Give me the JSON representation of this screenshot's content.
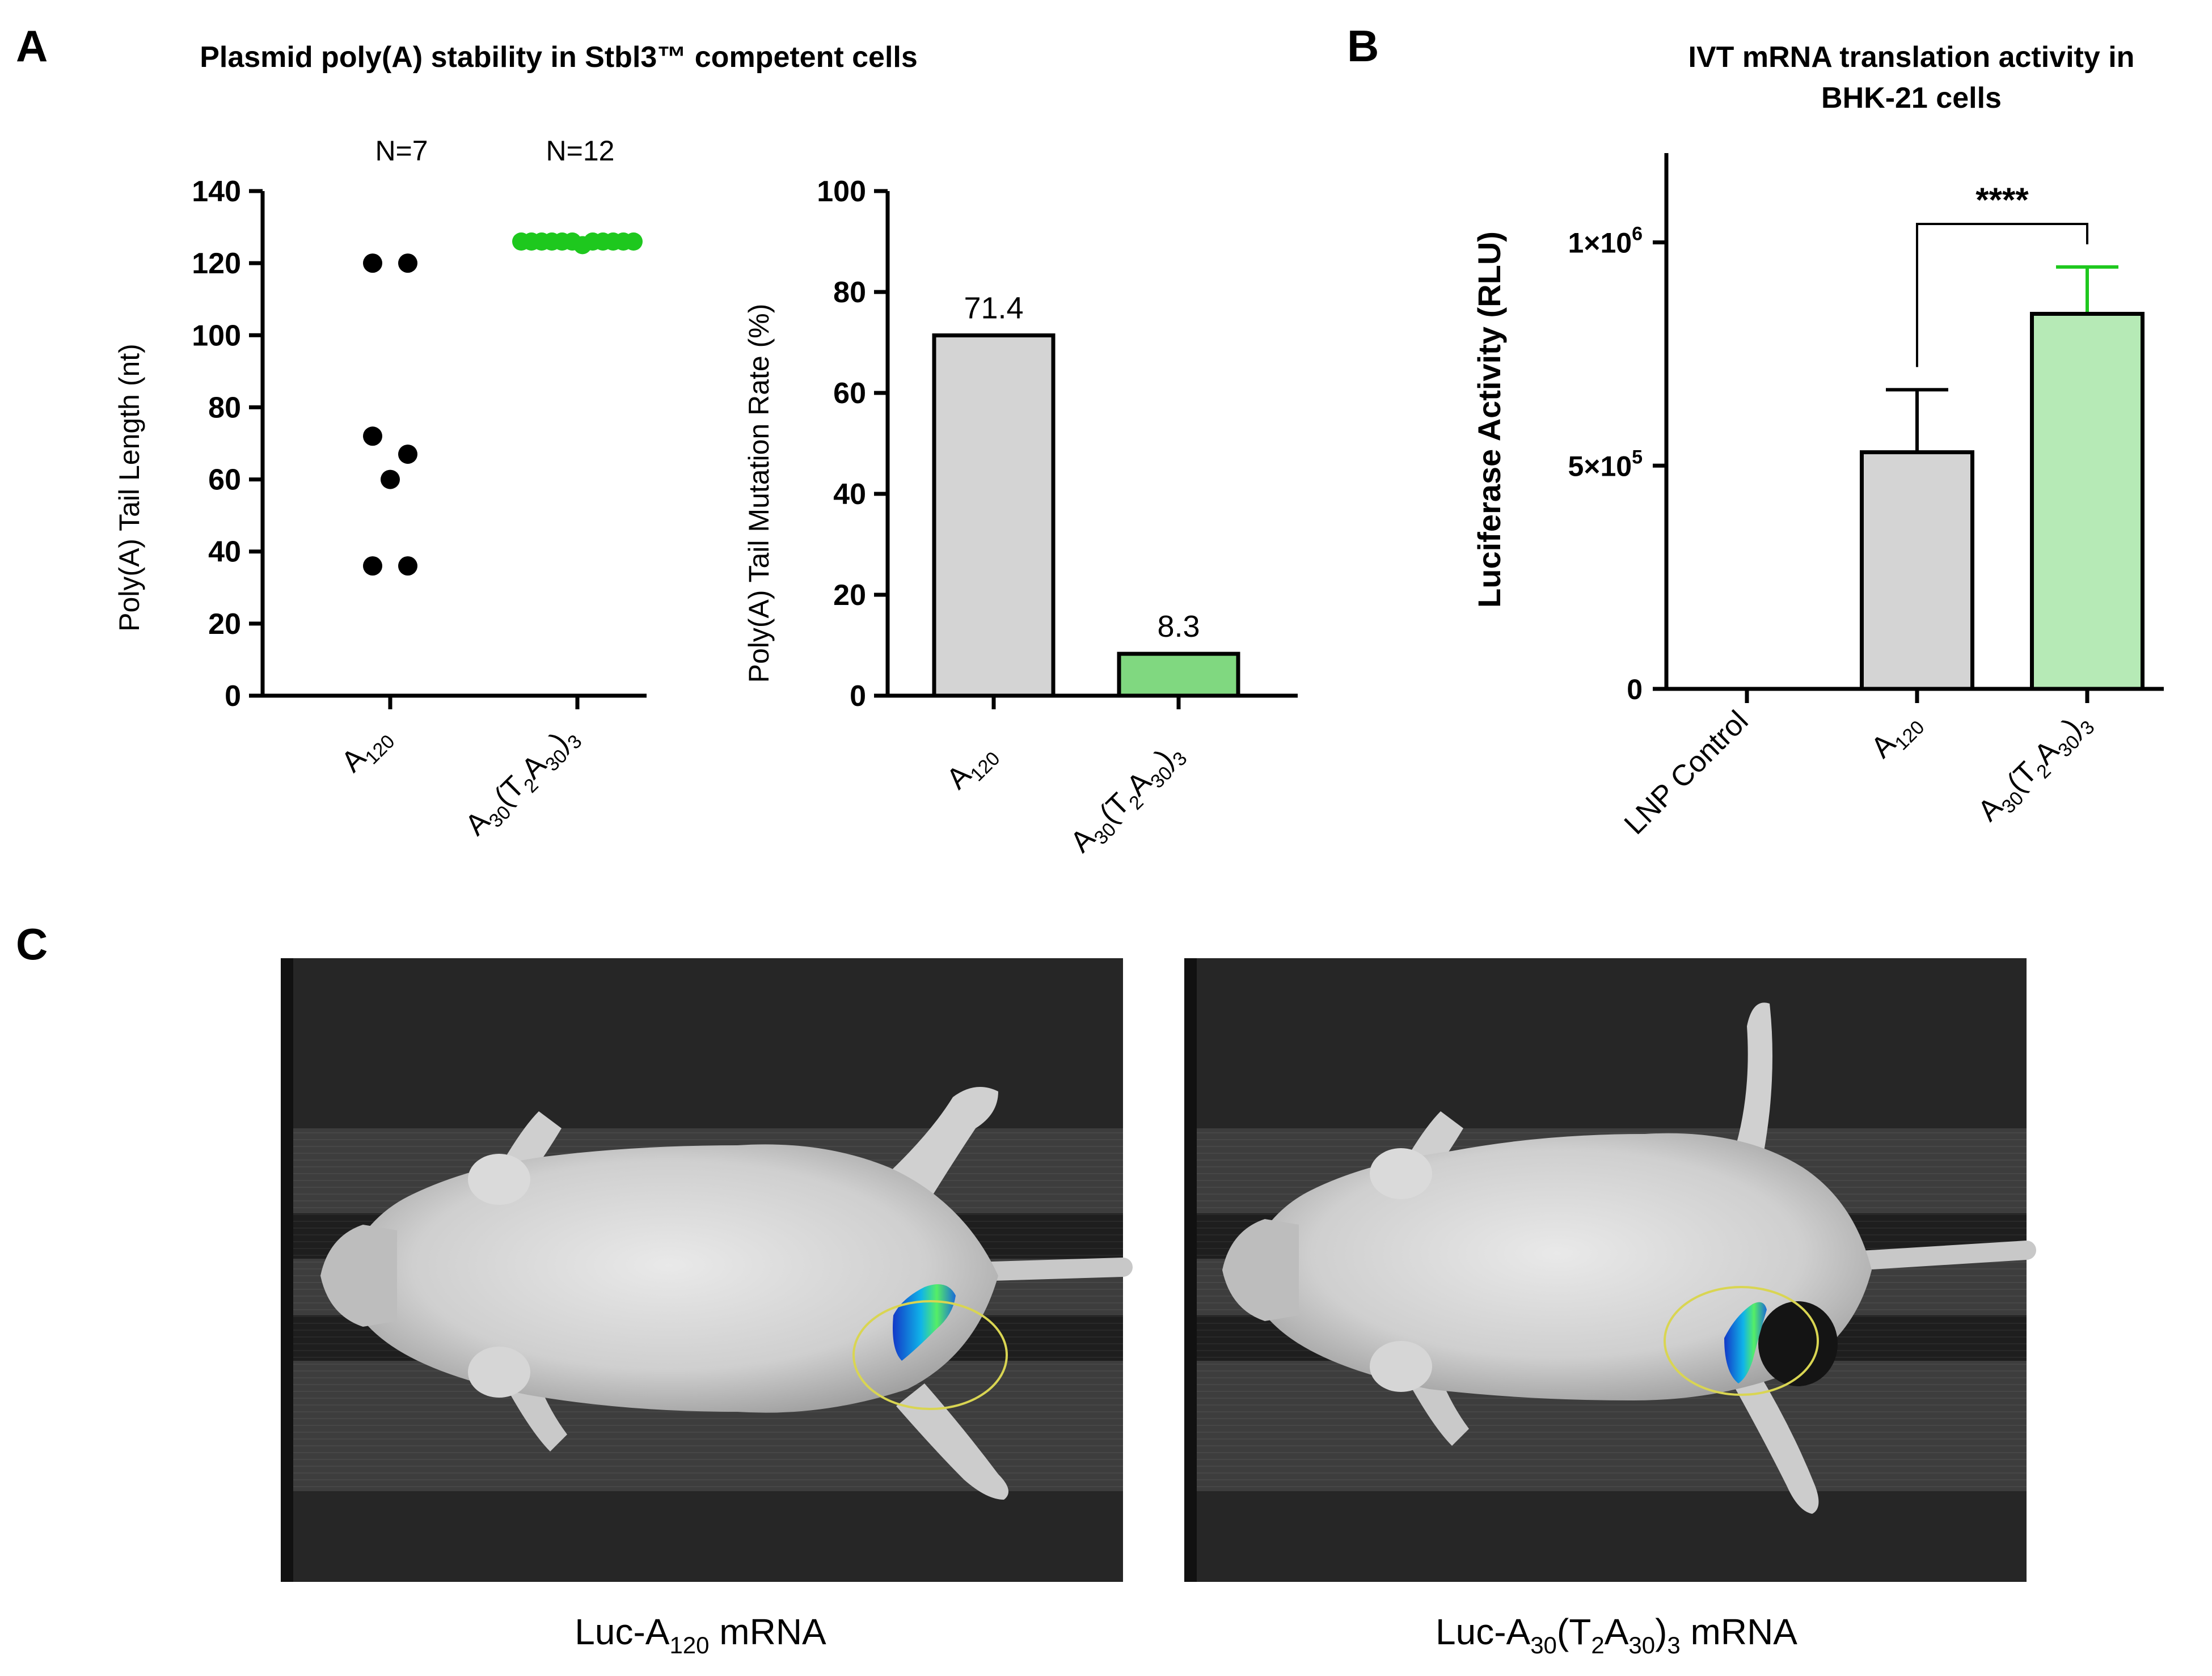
{
  "panel_letters": {
    "a": "A",
    "b": "B",
    "c": "C"
  },
  "chart_data": [
    {
      "type": "scatter",
      "panel": "A",
      "title": "Plasmid poly(A) stability in Stbl3™ competent cells",
      "ylabel": "Poly(A) Tail Length (nt)",
      "ylim": [
        0,
        140
      ],
      "yticks": [
        0,
        20,
        40,
        60,
        80,
        100,
        120,
        140
      ],
      "categories": [
        "A120",
        "A30(T2A30)3"
      ],
      "n_labels": [
        "N=7",
        "N=12"
      ],
      "colors": [
        "#000000",
        "#1ec81e"
      ],
      "points": [
        [
          120,
          120,
          72,
          67,
          60,
          36,
          36
        ],
        [
          126,
          126,
          126,
          126,
          126,
          126,
          125,
          126,
          126,
          126,
          126,
          126
        ]
      ]
    },
    {
      "type": "bar",
      "panel": "A",
      "ylabel": "Poly(A) Tail Mutation Rate (%)",
      "ylim": [
        0,
        100
      ],
      "yticks": [
        0,
        20,
        40,
        60,
        80,
        100
      ],
      "categories": [
        "A120",
        "A30(T2A30)3"
      ],
      "values": [
        71.4,
        8.3
      ],
      "value_labels": [
        "71.4",
        "8.3"
      ],
      "colors": [
        "#d4d4d4",
        "#80d880"
      ]
    },
    {
      "type": "bar",
      "panel": "B",
      "title_lines": [
        "IVT mRNA translation activity in",
        "BHK-21 cells"
      ],
      "ylabel": "Luciferase Activity (RLU)",
      "ylim": [
        0,
        1200000
      ],
      "yticks": [
        0,
        500000,
        1000000
      ],
      "categories": [
        "LNP Control",
        "A120",
        "A30(T2A30)3"
      ],
      "values": [
        0,
        530000,
        840000
      ],
      "errors": [
        0,
        140000,
        105000
      ],
      "colors": [
        "#ffffff",
        "#d4d4d4",
        "#b6eab6"
      ],
      "error_colors": [
        "#000000",
        "#000000",
        "#1ec81e"
      ],
      "significance": "****"
    }
  ],
  "panel_c": {
    "captions": [
      "Luc-A120 mRNA",
      "Luc-A30(T2A30)3 mRNA"
    ]
  }
}
